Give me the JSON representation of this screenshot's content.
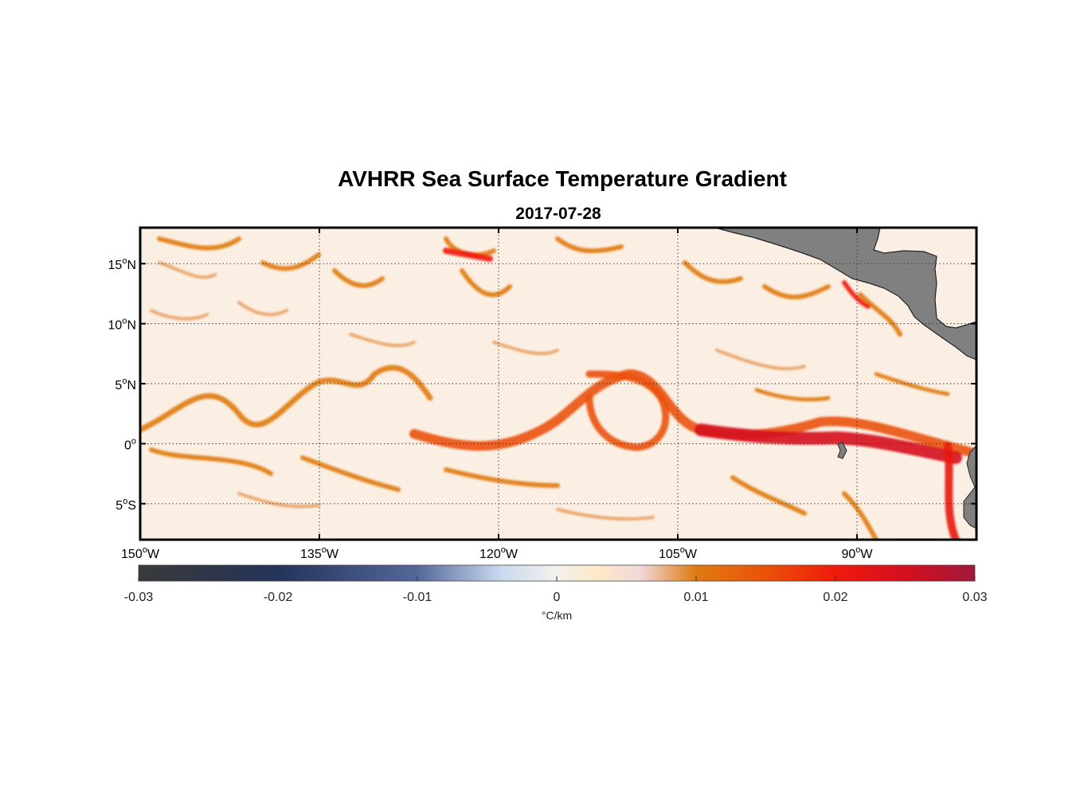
{
  "title": "AVHRR Sea Surface Temperature Gradient",
  "subtitle": "2017-07-28",
  "map": {
    "lon_range": [
      -150,
      -80
    ],
    "lat_range": [
      -8,
      18
    ],
    "grid_lines": "dotted",
    "land_color": "#808080",
    "x_ticks": [
      {
        "value": -150,
        "num": "150",
        "hemi": "W"
      },
      {
        "value": -135,
        "num": "135",
        "hemi": "W"
      },
      {
        "value": -120,
        "num": "120",
        "hemi": "W"
      },
      {
        "value": -105,
        "num": "105",
        "hemi": "W"
      },
      {
        "value": -90,
        "num": "90",
        "hemi": "W"
      }
    ],
    "y_ticks": [
      {
        "value": 15,
        "num": "15",
        "hemi": "N"
      },
      {
        "value": 10,
        "num": "10",
        "hemi": "N"
      },
      {
        "value": 5,
        "num": "5",
        "hemi": "N"
      },
      {
        "value": 0,
        "num": "0",
        "hemi": ""
      },
      {
        "value": -5,
        "num": "5",
        "hemi": "S"
      }
    ]
  },
  "colorbar": {
    "range": [
      -0.03,
      0.03
    ],
    "ticks": [
      {
        "value": -0.03,
        "label": "-0.03"
      },
      {
        "value": -0.02,
        "label": "-0.02"
      },
      {
        "value": -0.01,
        "label": "-0.01"
      },
      {
        "value": 0,
        "label": "0"
      },
      {
        "value": 0.01,
        "label": "0.01"
      },
      {
        "value": 0.02,
        "label": "0.02"
      },
      {
        "value": 0.03,
        "label": "0.03"
      }
    ],
    "unit_label": "°C/km",
    "stops": [
      {
        "value": -0.03,
        "color": "#3a3a3a"
      },
      {
        "value": -0.02,
        "color": "#24335a"
      },
      {
        "value": -0.01,
        "color": "#54689a"
      },
      {
        "value": -0.004,
        "color": "#c9d9ee"
      },
      {
        "value": 0,
        "color": "#f3f1ec"
      },
      {
        "value": 0.003,
        "color": "#fde7c8"
      },
      {
        "value": 0.006,
        "color": "#f0d9d9"
      },
      {
        "value": 0.01,
        "color": "#e07a10"
      },
      {
        "value": 0.015,
        "color": "#ea5208"
      },
      {
        "value": 0.02,
        "color": "#f01a0c"
      },
      {
        "value": 0.025,
        "color": "#d50f20"
      },
      {
        "value": 0.03,
        "color": "#a0183a"
      }
    ]
  }
}
